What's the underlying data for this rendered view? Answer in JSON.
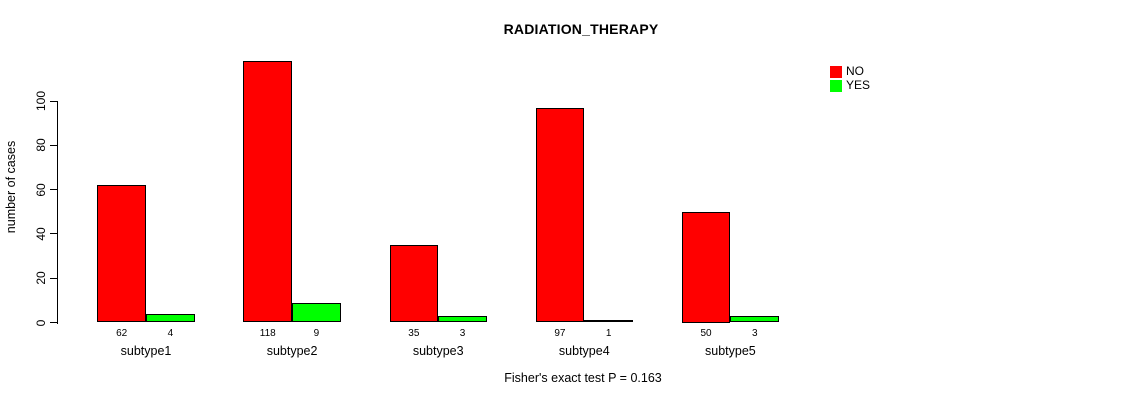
{
  "chart_data": {
    "type": "bar",
    "title": "RADIATION_THERAPY",
    "ylabel": "number of cases",
    "xlabel": "",
    "categories": [
      "subtype1",
      "subtype2",
      "subtype3",
      "subtype4",
      "subtype5"
    ],
    "series": [
      {
        "name": "NO",
        "color": "#ff0000",
        "values": [
          62,
          118,
          35,
          97,
          50
        ]
      },
      {
        "name": "YES",
        "color": "#00ff00",
        "values": [
          4,
          9,
          3,
          1,
          3
        ]
      }
    ],
    "bar_value_labels_shown": true,
    "yticks": [
      0,
      20,
      40,
      60,
      80,
      100
    ],
    "ylim": [
      0,
      123
    ],
    "grid": false,
    "legend_position": "top-right",
    "legend_box": false,
    "annotation": "Fisher's exact test P = 0.163",
    "bar_border_color": "#000000"
  }
}
